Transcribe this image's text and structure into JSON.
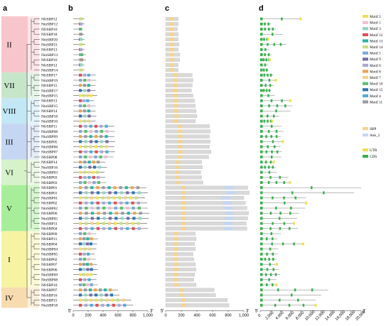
{
  "panels": {
    "a": "a",
    "b": "b",
    "c": "c",
    "d": "d"
  },
  "end_labels": {
    "five": "5'",
    "three": "3'"
  },
  "genes": [
    "NfrSBP12",
    "NinSBP12",
    "NfrSBP10",
    "NfrSBP18",
    "NinSBP20",
    "NinSBP21",
    "NfrSBP13",
    "NinSBP13",
    "NfrSBP16",
    "NfrSBP12",
    "NinSBP14",
    "NfrSBP17",
    "NinSBP19",
    "NfrSBP15",
    "NinSBP17",
    "NinSBP15",
    "NfrSBP13",
    "NinSBP15",
    "NfrSBP14",
    "NinSBP18",
    "NinSBP10",
    "NfrSBP11",
    "NinSBP08",
    "NinSBP09",
    "NfrSBP05",
    "NinSBP06",
    "NinSBP07",
    "NfrSBP08",
    "NfrSBP14",
    "NinSBP16",
    "NinSBP03",
    "NfrSBP03",
    "NfrSBP03",
    "NfrSBP01",
    "NfrSBP01",
    "NinSBP01",
    "NfrSBP02",
    "NinSBP02",
    "NfrSBP06",
    "NinSBP05",
    "NinSBP11",
    "NfrSBP04",
    "NfrSBP09",
    "NfrSBP11",
    "NfrSBP04",
    "NinSBP04",
    "NinSBP05",
    "NfrSBP02",
    "NfrSBP07",
    "NfrSBP06",
    "NinSBP09",
    "NinSBP08",
    "NfrSBP10",
    "NfrSBP07",
    "NfrSBP16",
    "NfrSBP15",
    "NinSBP18"
  ],
  "groups": [
    {
      "label": "II",
      "start": 0,
      "end": 10,
      "color": "#f7c6cc"
    },
    {
      "label": "VII",
      "start": 11,
      "end": 15,
      "color": "#c6e6c9"
    },
    {
      "label": "VIII",
      "start": 16,
      "end": 20,
      "color": "#c2e7f5"
    },
    {
      "label": "III",
      "start": 21,
      "end": 27,
      "color": "#c5d6f2"
    },
    {
      "label": "VI",
      "start": 28,
      "end": 32,
      "color": "#d6f2c8"
    },
    {
      "label": "V",
      "start": 33,
      "end": 41,
      "color": "#a7ee9a"
    },
    {
      "label": "I",
      "start": 42,
      "end": 52,
      "color": "#f6f4a3"
    },
    {
      "label": "IV",
      "start": 53,
      "end": 56,
      "color": "#f7dcb0"
    }
  ],
  "axis_b": {
    "max": 1000,
    "ticks": [
      "0",
      "200",
      "400",
      "600",
      "800",
      "1,000"
    ]
  },
  "axis_c": {
    "max": 1000,
    "ticks": [
      "0",
      "200",
      "400",
      "600",
      "800",
      "1,000"
    ]
  },
  "axis_d": {
    "max": 20000,
    "ticks": [
      "0",
      "2,000",
      "4,000",
      "6,000",
      "8,000",
      "10,000",
      "12,000",
      "14,000",
      "16,000",
      "18,000",
      "20,000"
    ]
  },
  "motif_legend": [
    {
      "name": "Motif 2",
      "color": "#f2e24a"
    },
    {
      "name": "Motif 1",
      "color": "#f0bcd0"
    },
    {
      "name": "Motif 3",
      "color": "#8fd4c4"
    },
    {
      "name": "Motif 12",
      "color": "#e64b59"
    },
    {
      "name": "Motif 13",
      "color": "#1fb9a8"
    },
    {
      "name": "Motif 14",
      "color": "#c9e07a"
    },
    {
      "name": "Motif 5",
      "color": "#7ea8d6"
    },
    {
      "name": "Motif 9",
      "color": "#7a6aa6"
    },
    {
      "name": "Motif 6",
      "color": "#a8a8d8"
    },
    {
      "name": "Motif 8",
      "color": "#f0a24a"
    },
    {
      "name": "Motif 7",
      "color": "#f3d18a"
    },
    {
      "name": "Motif 10",
      "color": "#5cc06e"
    },
    {
      "name": "Motif 15",
      "color": "#2a76b8"
    },
    {
      "name": "Motif 4",
      "color": "#4ab0d6"
    },
    {
      "name": "Motif 11",
      "color": "#9a9a9a"
    }
  ],
  "domain_legend": [
    {
      "name": "SBP",
      "color": "#f7d38a"
    },
    {
      "name": "Ank_2",
      "color": "#c5d6f2"
    }
  ],
  "structure_legend": [
    {
      "name": "UTR",
      "color": "#f2e24a"
    },
    {
      "name": "CDS",
      "color": "#34b34a"
    }
  ],
  "motif_lengths": [
    150,
    150,
    130,
    150,
    150,
    160,
    150,
    170,
    170,
    150,
    150,
    300,
    310,
    300,
    300,
    320,
    280,
    300,
    300,
    310,
    300,
    550,
    560,
    550,
    560,
    550,
    560,
    540,
    430,
    450,
    420,
    430,
    440,
    980,
    1000,
    960,
    990,
    1000,
    1020,
    1010,
    990,
    1000,
    310,
    330,
    320,
    310,
    290,
    300,
    320,
    330,
    320,
    310,
    330,
    600,
    620,
    780,
    800
  ],
  "protein_lengths": [
    160,
    160,
    150,
    160,
    160,
    170,
    160,
    180,
    180,
    160,
    160,
    340,
    350,
    340,
    330,
    350,
    370,
    380,
    390,
    400,
    380,
    560,
    570,
    560,
    570,
    560,
    580,
    550,
    460,
    470,
    450,
    460,
    480,
    1050,
    1070,
    1000,
    1020,
    1040,
    1060,
    1050,
    1030,
    1040,
    380,
    390,
    370,
    380,
    350,
    360,
    380,
    390,
    370,
    360,
    390,
    620,
    640,
    790,
    810
  ],
  "gene_lengths": [
    8200,
    2200,
    3100,
    4500,
    1800,
    5200,
    1700,
    2300,
    2100,
    1600,
    1700,
    2600,
    3300,
    2700,
    2200,
    2900,
    6200,
    6400,
    6000,
    3800,
    2600,
    4200,
    4600,
    4100,
    4700,
    4000,
    4300,
    4200,
    2900,
    3100,
    3300,
    5600,
    6100,
    20000,
    18600,
    9100,
    9300,
    8900,
    7700,
    7300,
    6900,
    7500,
    4100,
    3400,
    8700,
    3600,
    3500,
    3200,
    3500,
    3700,
    3900,
    3200,
    3400,
    13500,
    12100,
    11000,
    11200
  ]
}
